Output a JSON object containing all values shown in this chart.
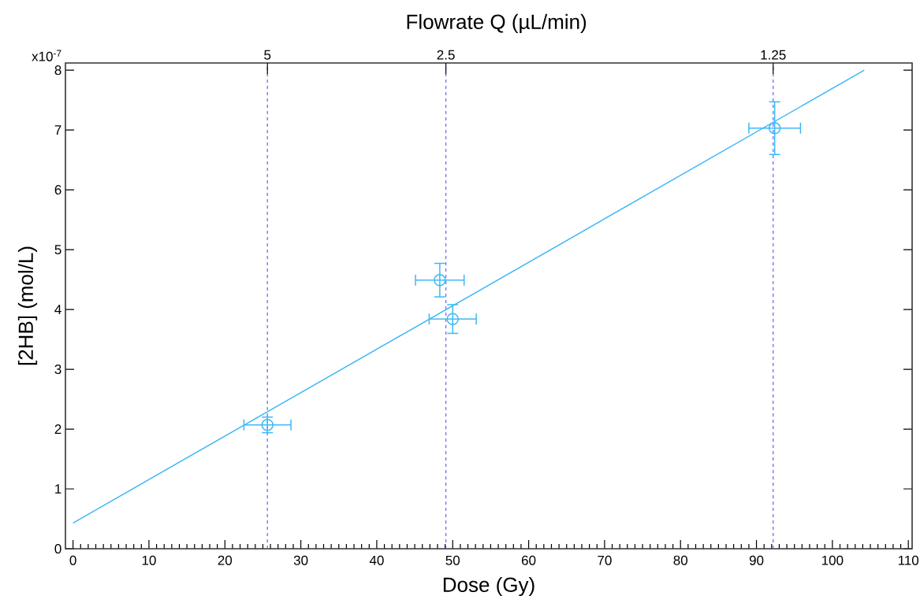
{
  "chart_data": {
    "type": "scatter",
    "xlabel": "Dose (Gy)",
    "ylabel": "[2HB] (mol/L)",
    "x2label": "Flowrate Q (µL/min)",
    "xlim": [
      -1,
      110.5
    ],
    "xticks": [
      0,
      10,
      20,
      30,
      40,
      50,
      60,
      70,
      80,
      90,
      100,
      110
    ],
    "ylim": [
      0,
      8.12
    ],
    "yticks": [
      0,
      1,
      2,
      3,
      4,
      5,
      6,
      7,
      8
    ],
    "annotations": [
      "x10$^{-7}$",
      {
        "text": "5",
        "x": 25.6,
        "y": 8.12
      },
      {
        "text": "2.5",
        "x": 49.1,
        "y": 8.12
      },
      {
        "text": "1.25",
        "x": 92.2,
        "y": 8.12
      }
    ],
    "ref_lines": [
      {
        "axis": "x",
        "value": 25.6,
        "color": "#7070f0",
        "line_style": "dashed"
      },
      {
        "axis": "x",
        "value": 49.1,
        "color": "#7070f0",
        "line_style": "dashed"
      },
      {
        "axis": "x",
        "value": 92.2,
        "color": "#7070f0",
        "line_style": "dashed"
      }
    ],
    "series": [
      {
        "color": "#3db8f5",
        "marker": "circle",
        "x": [
          25.6,
          48.3,
          50.0,
          92.4
        ],
        "values": [
          2.07,
          4.49,
          3.84,
          7.03
        ],
        "errors": [
          0.13,
          0.28,
          0.24,
          0.44
        ],
        "xerrors": [
          3.1,
          3.2,
          3.1,
          3.4
        ]
      },
      {
        "type": "line",
        "color": "#3db8f5",
        "marker": "none",
        "x": [
          0,
          104.2
        ],
        "values": [
          0.43,
          8.0
        ]
      }
    ]
  }
}
